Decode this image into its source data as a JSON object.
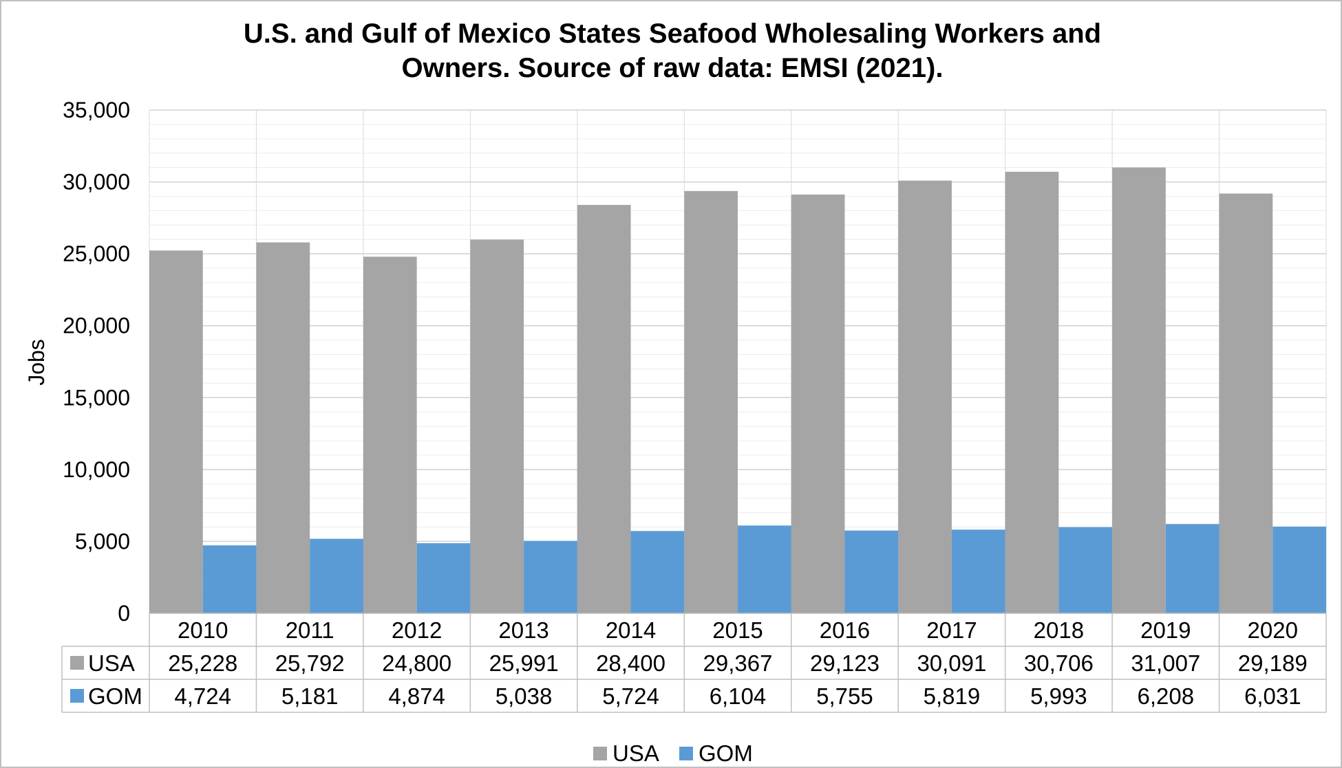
{
  "chart_data": {
    "type": "bar",
    "title_line1": "U.S. and Gulf of Mexico States Seafood Wholesaling Workers and",
    "title_line2": "Owners. Source of raw data: EMSI (2021).",
    "ylabel": "Jobs",
    "ylim": [
      0,
      35000
    ],
    "yticks": [
      0,
      5000,
      10000,
      15000,
      20000,
      25000,
      30000,
      35000
    ],
    "ytick_labels": [
      "0",
      "5,000",
      "10,000",
      "15,000",
      "20,000",
      "25,000",
      "30,000",
      "35,000"
    ],
    "grid": true,
    "legend_position": "bottom",
    "data_table": true,
    "categories": [
      "2010",
      "2011",
      "2012",
      "2013",
      "2014",
      "2015",
      "2016",
      "2017",
      "2018",
      "2019",
      "2020"
    ],
    "series": [
      {
        "name": "USA",
        "color": "#a5a5a5",
        "values": [
          25228,
          25792,
          24800,
          25991,
          28400,
          29367,
          29123,
          30091,
          30706,
          31007,
          29189
        ],
        "labels": [
          "25,228",
          "25,792",
          "24,800",
          "25,991",
          "28,400",
          "29,367",
          "29,123",
          "30,091",
          "30,706",
          "31,007",
          "29,189"
        ]
      },
      {
        "name": "GOM",
        "color": "#5b9bd5",
        "values": [
          4724,
          5181,
          4874,
          5038,
          5724,
          6104,
          5755,
          5819,
          5993,
          6208,
          6031
        ],
        "labels": [
          "4,724",
          "5,181",
          "4,874",
          "5,038",
          "5,724",
          "6,104",
          "5,755",
          "5,819",
          "5,993",
          "6,208",
          "6,031"
        ]
      }
    ]
  }
}
